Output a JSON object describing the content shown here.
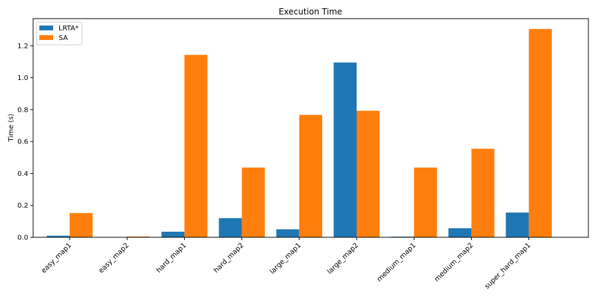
{
  "chart_data": {
    "type": "bar",
    "title": "Execution Time",
    "xlabel": "",
    "ylabel": "Time (s)",
    "ylim": [
      0,
      1.37
    ],
    "yticks": [
      "0.0",
      "0.2",
      "0.4",
      "0.6",
      "0.8",
      "1.0",
      "1.2"
    ],
    "grid": false,
    "legend_position": "top-left",
    "categories": [
      "easy_map1",
      "easy_map2",
      "hard_map1",
      "hard_map2",
      "large_map1",
      "large_map2",
      "medium_map1",
      "medium_map2",
      "super_hard_map1"
    ],
    "series": [
      {
        "name": "LRTA*",
        "color": "#1f77b4",
        "values": [
          0.01,
          0.0,
          0.035,
          0.12,
          0.05,
          1.095,
          0.004,
          0.057,
          0.155
        ]
      },
      {
        "name": "SA",
        "color": "#ff7f0e",
        "values": [
          0.152,
          0.005,
          1.143,
          0.437,
          0.767,
          0.793,
          0.437,
          0.555,
          1.305
        ]
      }
    ]
  }
}
